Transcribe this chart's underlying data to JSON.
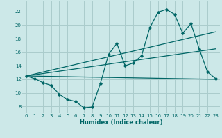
{
  "bg_color": "#cce8e8",
  "grid_color": "#aacccc",
  "line_color": "#006666",
  "xlabel": "Humidex (Indice chaleur)",
  "xlim": [
    -0.5,
    23.5
  ],
  "ylim": [
    7,
    23.5
  ],
  "xticks": [
    0,
    1,
    2,
    3,
    4,
    5,
    6,
    7,
    8,
    9,
    10,
    11,
    12,
    13,
    14,
    15,
    16,
    17,
    18,
    19,
    20,
    21,
    22,
    23
  ],
  "yticks": [
    8,
    10,
    12,
    14,
    16,
    18,
    20,
    22
  ],
  "line1_x": [
    0,
    1,
    2,
    3,
    4,
    5,
    6,
    7,
    8,
    9,
    10,
    11,
    12,
    13,
    14,
    15,
    16,
    17,
    18,
    19,
    20,
    21,
    22,
    23
  ],
  "line1_y": [
    12.5,
    12.1,
    11.5,
    11.1,
    9.8,
    9.0,
    8.7,
    7.8,
    7.9,
    11.4,
    15.7,
    17.3,
    14.0,
    14.4,
    15.5,
    19.6,
    21.9,
    22.3,
    21.6,
    18.8,
    20.2,
    16.5,
    13.1,
    12.1
  ],
  "line2_x": [
    0,
    23
  ],
  "line2_y": [
    12.5,
    12.0
  ],
  "line3_x": [
    0,
    23
  ],
  "line3_y": [
    12.5,
    19.0
  ],
  "line4_x": [
    0,
    23
  ],
  "line4_y": [
    12.5,
    16.5
  ]
}
